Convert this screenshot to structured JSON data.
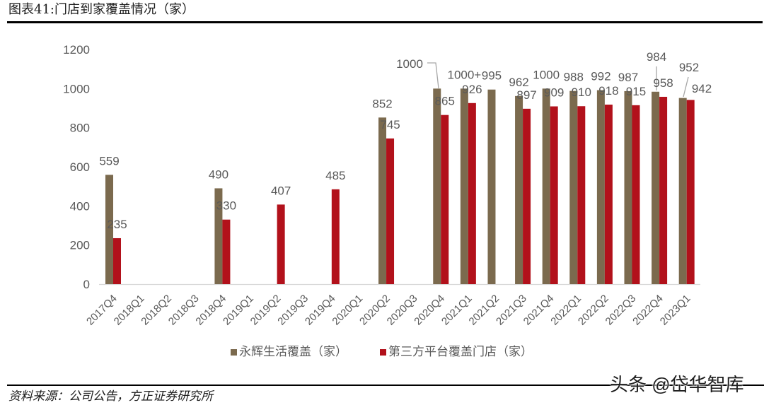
{
  "header": {
    "title": "图表41:门店到家覆盖情况（家）"
  },
  "legend": {
    "items": [
      {
        "label": "永辉生活覆盖（家）",
        "color": "#7B6A4E"
      },
      {
        "label": "第三方平台覆盖门店（家）",
        "color": "#B2111B"
      }
    ]
  },
  "footer": {
    "source": "资料来源：公司公告，方正证券研究所",
    "watermark": "头条 @岱华智库"
  },
  "chart_data": {
    "type": "bar",
    "title": "门店到家覆盖情况（家）",
    "xlabel": "",
    "ylabel": "",
    "ylim": [
      0,
      1200
    ],
    "y_ticks": [
      0,
      200,
      400,
      600,
      800,
      1000,
      1200
    ],
    "grid": false,
    "legend_position": "bottom",
    "categories": [
      "2017Q4",
      "2018Q1",
      "2018Q2",
      "2018Q3",
      "2018Q4",
      "2019Q1",
      "2019Q2",
      "2019Q3",
      "2019Q4",
      "2020Q1",
      "2020Q2",
      "2020Q3",
      "2020Q4",
      "2021Q1",
      "2021Q2",
      "2021Q3",
      "2021Q4",
      "2022Q1",
      "2022Q2",
      "2022Q3",
      "2022Q4",
      "2023Q1"
    ],
    "series": [
      {
        "name": "永辉生活覆盖（家）",
        "color": "#7B6A4E",
        "values": [
          559,
          null,
          null,
          null,
          490,
          null,
          null,
          null,
          null,
          null,
          852,
          null,
          1000,
          1000,
          995,
          962,
          1000,
          988,
          992,
          987,
          984,
          952
        ],
        "labels": [
          "559",
          null,
          null,
          null,
          "490",
          null,
          null,
          null,
          null,
          null,
          "852",
          null,
          "1000",
          "1000+",
          "995",
          "962",
          "1000",
          "988",
          "992",
          "987",
          "984",
          "952"
        ]
      },
      {
        "name": "第三方平台覆盖门店（家）",
        "color": "#B2111B",
        "values": [
          235,
          null,
          null,
          null,
          330,
          null,
          407,
          null,
          485,
          null,
          745,
          null,
          865,
          926,
          null,
          897,
          909,
          910,
          918,
          915,
          958,
          942
        ],
        "labels": [
          "235",
          null,
          null,
          null,
          "330",
          null,
          "407",
          null,
          "485",
          null,
          "745",
          null,
          "865",
          "926",
          null,
          "897",
          "909",
          "910",
          "918",
          "915",
          "958",
          "942"
        ]
      }
    ]
  }
}
